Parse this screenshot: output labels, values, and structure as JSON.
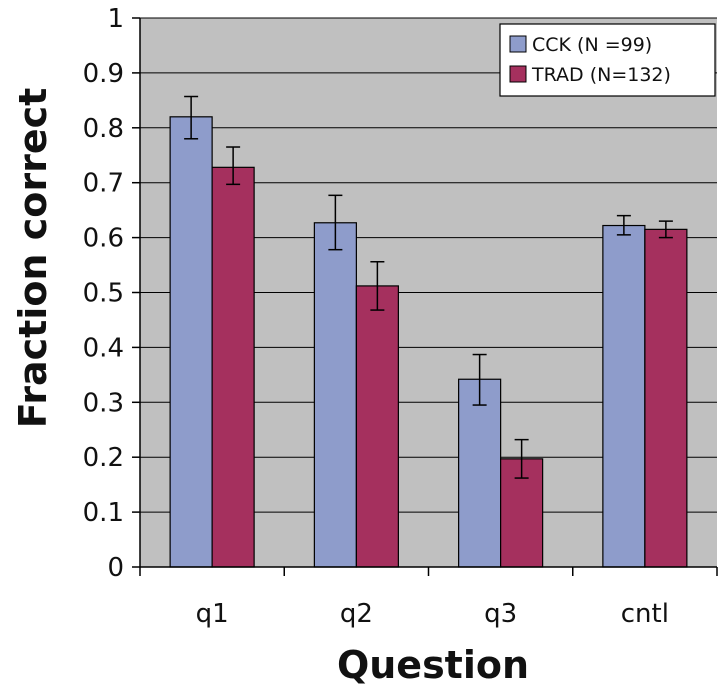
{
  "chart_data": {
    "type": "bar",
    "title": "",
    "xlabel": "Question",
    "ylabel": "Fraction correct",
    "categories": [
      "q1",
      "q2",
      "q3",
      "cntl"
    ],
    "ylim": [
      0,
      1
    ],
    "yticks": [
      "0",
      "0.1",
      "0.2",
      "0.3",
      "0.4",
      "0.5",
      "0.6",
      "0.7",
      "0.8",
      "0.9",
      "1"
    ],
    "grid": true,
    "legend_position": "top-right",
    "series": [
      {
        "name": "CCK (N =99)",
        "color": "#8e9ccb",
        "values": [
          0.82,
          0.627,
          0.342,
          0.622
        ],
        "error_low": [
          0.78,
          0.578,
          0.295,
          0.605
        ],
        "error_high": [
          0.857,
          0.677,
          0.387,
          0.64
        ]
      },
      {
        "name": "TRAD (N=132)",
        "color": "#a5305e",
        "values": [
          0.728,
          0.512,
          0.197,
          0.615
        ],
        "error_low": [
          0.697,
          0.468,
          0.162,
          0.6
        ],
        "error_high": [
          0.765,
          0.556,
          0.232,
          0.63
        ]
      }
    ],
    "plot_background": "#c0c0c0",
    "grid_color": "#000000"
  }
}
